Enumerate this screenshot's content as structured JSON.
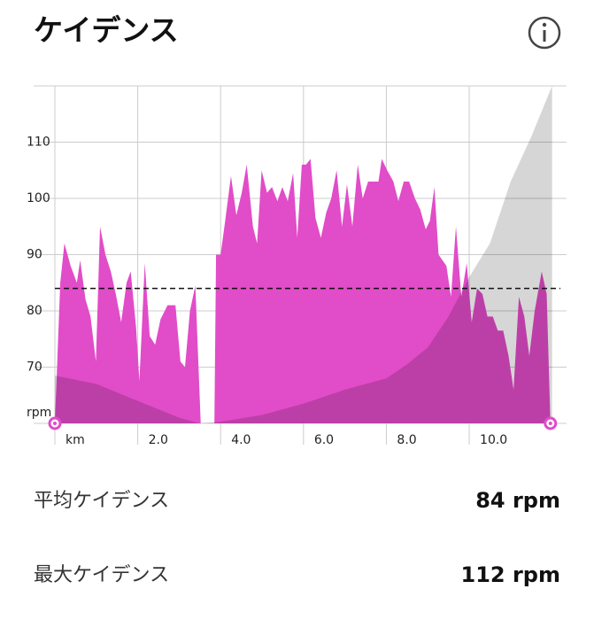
{
  "header": {
    "title": "ケイデンス"
  },
  "chart_data": {
    "type": "area",
    "x": [
      0,
      0.13,
      0.23,
      0.38,
      0.53,
      0.61,
      0.74,
      0.86,
      0.99,
      1.09,
      1.22,
      1.35,
      1.47,
      1.6,
      1.73,
      1.83,
      1.96,
      2.04,
      2.17,
      2.29,
      2.42,
      2.55,
      2.72,
      2.91,
      3.03,
      3.14,
      3.26,
      3.39,
      3.52,
      3.85,
      3.89,
      4.0,
      4.11,
      4.25,
      4.38,
      4.51,
      4.63,
      4.78,
      4.88,
      4.99,
      5.12,
      5.24,
      5.37,
      5.49,
      5.62,
      5.75,
      5.85,
      5.96,
      6.06,
      6.17,
      6.29,
      6.42,
      6.55,
      6.67,
      6.8,
      6.93,
      7.05,
      7.18,
      7.31,
      7.43,
      7.56,
      7.68,
      7.81,
      7.89,
      8.02,
      8.17,
      8.29,
      8.42,
      8.55,
      8.69,
      8.82,
      8.95,
      9.05,
      9.16,
      9.26,
      9.45,
      9.56,
      9.68,
      9.81,
      9.94,
      10.06,
      10.19,
      10.32,
      10.44,
      10.57,
      10.69,
      10.82,
      10.95,
      11.07,
      11.2,
      11.33,
      11.45,
      11.58,
      11.75,
      11.87,
      11.96
    ],
    "series": [
      {
        "color": "#e14cc8",
        "values": [
          60,
          85,
          92,
          88,
          85,
          89,
          82,
          79,
          71,
          95,
          90,
          87,
          83,
          78,
          85,
          87,
          77,
          67.5,
          88.5,
          75.5,
          74,
          78.5,
          81,
          81,
          71,
          70,
          80,
          84.5,
          60,
          60,
          90,
          90,
          96,
          104,
          97,
          101,
          106,
          95,
          92,
          105,
          101,
          102,
          99.5,
          102,
          99.5,
          104.5,
          93,
          106,
          106,
          107,
          96.5,
          93,
          97.5,
          100,
          105,
          95,
          102.5,
          95,
          106,
          100,
          103,
          103,
          103,
          107,
          105,
          103,
          99.5,
          103,
          103,
          100,
          98,
          94.5,
          96,
          102,
          90,
          88,
          82.5,
          95,
          82.5,
          88.5,
          78,
          84,
          83,
          79,
          79,
          76.5,
          76.5,
          72,
          66,
          82.5,
          79,
          72,
          80,
          87,
          83,
          60
        ]
      },
      {
        "color": "#000000",
        "x": [
          0,
          1,
          2,
          3,
          3.5,
          4,
          5,
          6,
          7,
          8,
          8.5,
          9,
          9.5,
          10,
          10.5,
          11,
          11.5,
          12
        ],
        "values": [
          68.5,
          67,
          64,
          61,
          60,
          60.3,
          61.5,
          63.5,
          66,
          68,
          70.5,
          73.5,
          79,
          86,
          92,
          103,
          111,
          120
        ]
      }
    ],
    "average": 84,
    "xlim": [
      0,
      12.2
    ],
    "ylim": [
      60,
      120
    ],
    "xticks": [
      {
        "value": 0,
        "label": "km"
      },
      {
        "value": 2,
        "label": "2.0"
      },
      {
        "value": 4,
        "label": "4.0"
      },
      {
        "value": 6,
        "label": "6.0"
      },
      {
        "value": 8,
        "label": "8.0"
      },
      {
        "value": 10,
        "label": "10.0"
      }
    ],
    "yticks": [
      {
        "value": 60,
        "label": "rpm"
      },
      70,
      80,
      90,
      100,
      110
    ],
    "grid": true
  },
  "stats": [
    {
      "label": "平均ケイデンス",
      "value": "84 rpm"
    },
    {
      "label": "最大ケイデンス",
      "value": "112 rpm"
    }
  ]
}
